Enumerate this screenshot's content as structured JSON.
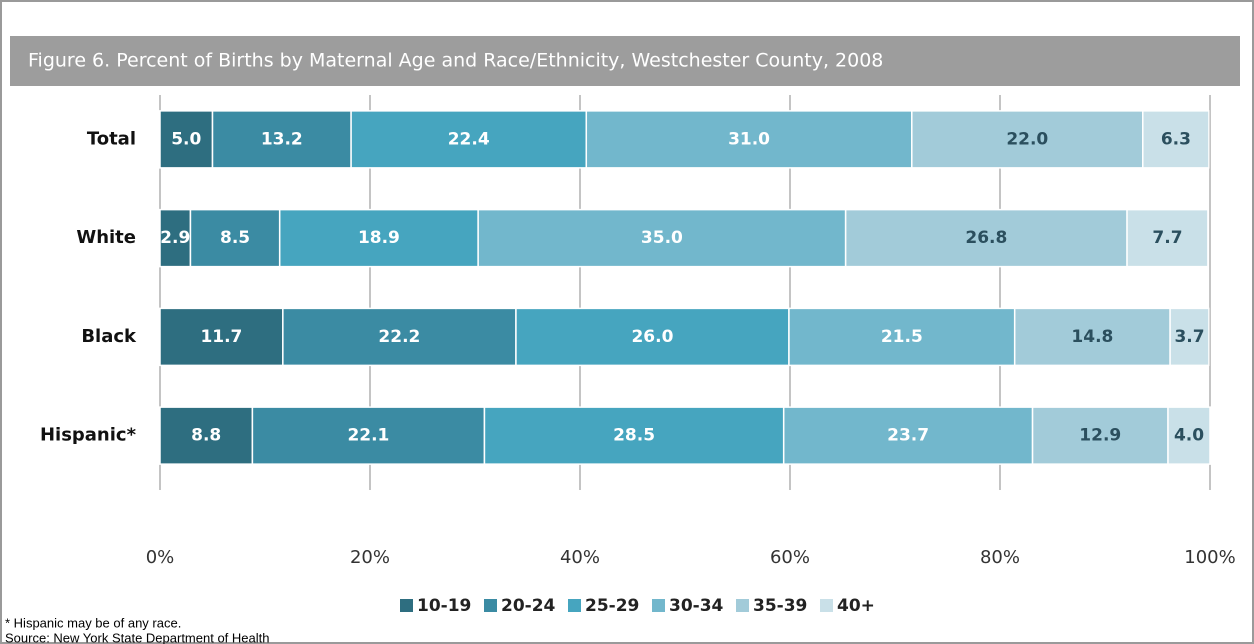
{
  "chart_data": {
    "type": "stacked-barh",
    "title": "Figure 6.  Percent of Births by Maternal Age and Race/Ethnicity, Westchester County, 2008",
    "categories": [
      "Total",
      "White",
      "Black",
      "Hispanic*"
    ],
    "series": [
      {
        "name": "10-19",
        "color": "#2e6e80",
        "values": [
          5.0,
          2.9,
          11.7,
          8.8
        ],
        "value_labels": [
          "5.0",
          "2.9",
          "11.7",
          "8.8"
        ]
      },
      {
        "name": "20-24",
        "color": "#3b8ba3",
        "values": [
          13.2,
          8.5,
          22.2,
          22.1
        ],
        "value_labels": [
          "13.2",
          "8.5",
          "22.2",
          "22.1"
        ]
      },
      {
        "name": "25-29",
        "color": "#46a5bf",
        "values": [
          22.4,
          18.9,
          26.0,
          28.5
        ],
        "value_labels": [
          "22.4",
          "18.9",
          "26.0",
          "28.5"
        ]
      },
      {
        "name": "30-34",
        "color": "#72b7cc",
        "values": [
          31.0,
          35.0,
          21.5,
          23.7
        ],
        "value_labels": [
          "31.0",
          "35.0",
          "21.5",
          "23.7"
        ]
      },
      {
        "name": "35-39",
        "color": "#a2cbd9",
        "values": [
          22.0,
          26.8,
          14.8,
          12.9
        ],
        "value_labels": [
          "22.0",
          "26.8",
          "14.8",
          "12.9"
        ]
      },
      {
        "name": "40+",
        "color": "#c9e0e8",
        "values": [
          6.3,
          7.7,
          3.7,
          4.0
        ],
        "value_labels": [
          "6.3",
          "7.7",
          "3.7",
          "4.0"
        ]
      }
    ],
    "xlim": [
      0,
      100
    ],
    "xticks": [
      {
        "value": 0,
        "label": "0%"
      },
      {
        "value": 20,
        "label": "20%"
      },
      {
        "value": 40,
        "label": "40%"
      },
      {
        "value": 60,
        "label": "60%"
      },
      {
        "value": 80,
        "label": "80%"
      },
      {
        "value": 100,
        "label": "100%"
      }
    ],
    "grid": true,
    "legend": "bottom",
    "notes": [
      "* Hispanic may be of any race.",
      "Source: New York State Department of Health"
    ]
  }
}
